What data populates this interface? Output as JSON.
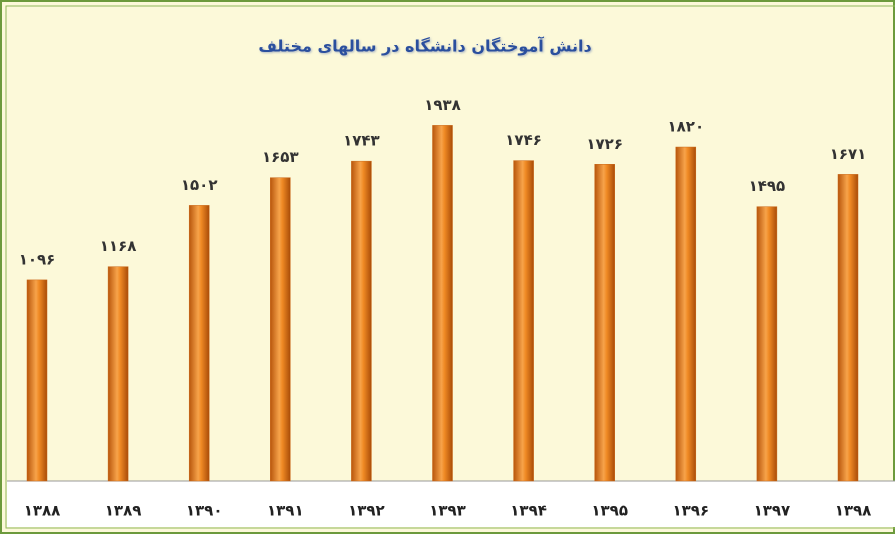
{
  "chart_data": {
    "type": "bar",
    "title": "دانش آموختگان دانشگاه در سالهای مختلف",
    "categories": [
      "۱۳۸۸",
      "۱۳۸۹",
      "۱۳۹۰",
      "۱۳۹۱",
      "۱۳۹۲",
      "۱۳۹۳",
      "۱۳۹۴",
      "۱۳۹۵",
      "۱۳۹۶",
      "۱۳۹۷",
      "۱۳۹۸"
    ],
    "values": [
      1096,
      1168,
      1502,
      1653,
      1743,
      1938,
      1746,
      1726,
      1820,
      1495,
      1671
    ],
    "value_labels": [
      "۱۰۹۶",
      "۱۱۶۸",
      "۱۵۰۲",
      "۱۶۵۳",
      "۱۷۴۳",
      "۱۹۳۸",
      "۱۷۴۶",
      "۱۷۲۶",
      "۱۸۲۰",
      "۱۴۹۵",
      "۱۶۷۱"
    ],
    "color": "#f08a24",
    "ylim": [
      0,
      2000
    ]
  }
}
